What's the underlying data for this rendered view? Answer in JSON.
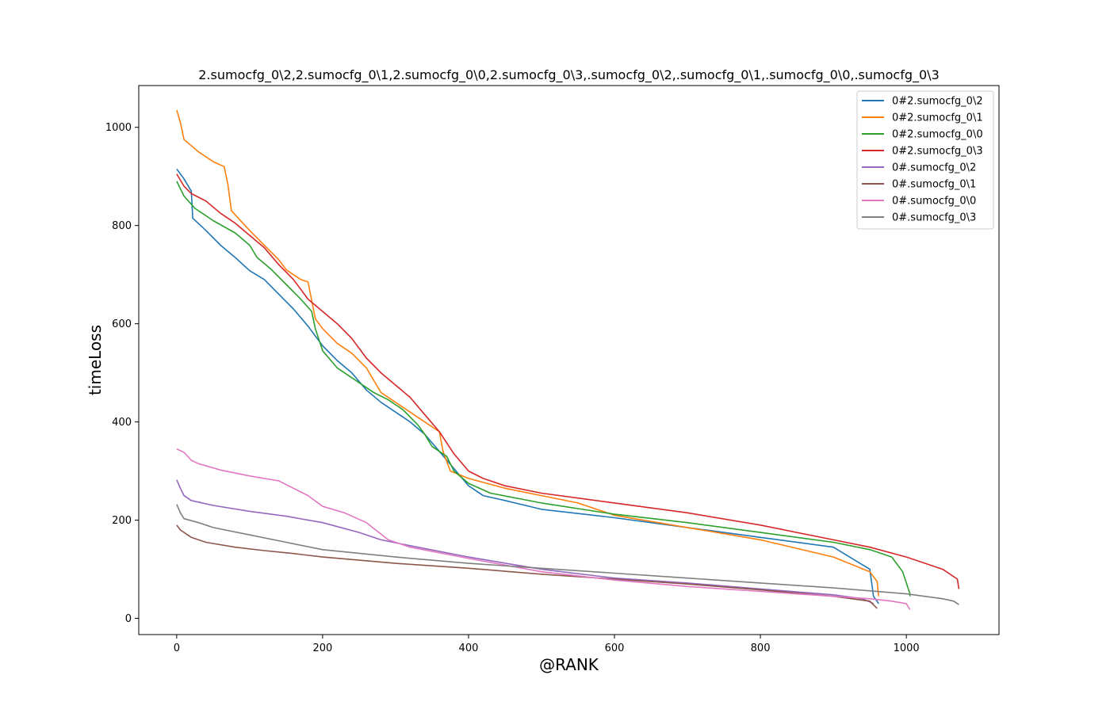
{
  "chart_data": {
    "type": "line",
    "title": "2.sumocfg_0\\2,2.sumocfg_0\\1,2.sumocfg_0\\0,2.sumocfg_0\\3,.sumocfg_0\\2,.sumocfg_0\\1,.sumocfg_0\\0,.sumocfg_0\\3",
    "xlabel": "@RANK",
    "ylabel": "timeLoss",
    "xlim": [
      -52,
      1127
    ],
    "ylim": [
      -33,
      1085
    ],
    "xticks": [
      0,
      200,
      400,
      600,
      800,
      1000
    ],
    "yticks": [
      0,
      200,
      400,
      600,
      800,
      1000
    ],
    "xtick_labels": [
      "0",
      "200",
      "400",
      "600",
      "800",
      "1000"
    ],
    "ytick_labels": [
      "0",
      "200",
      "400",
      "600",
      "800",
      "1000"
    ],
    "grid": false,
    "legend_position": "top-right",
    "series": [
      {
        "name": "0#2.sumocfg_0\\2",
        "color": "#1f77b4",
        "points": [
          [
            0,
            915
          ],
          [
            10,
            895
          ],
          [
            20,
            870
          ],
          [
            22,
            815
          ],
          [
            40,
            790
          ],
          [
            60,
            760
          ],
          [
            80,
            735
          ],
          [
            100,
            708
          ],
          [
            120,
            690
          ],
          [
            140,
            660
          ],
          [
            160,
            630
          ],
          [
            180,
            595
          ],
          [
            200,
            555
          ],
          [
            220,
            525
          ],
          [
            240,
            500
          ],
          [
            260,
            465
          ],
          [
            280,
            440
          ],
          [
            300,
            420
          ],
          [
            320,
            400
          ],
          [
            340,
            375
          ],
          [
            360,
            340
          ],
          [
            380,
            305
          ],
          [
            400,
            270
          ],
          [
            420,
            250
          ],
          [
            450,
            240
          ],
          [
            500,
            222
          ],
          [
            600,
            205
          ],
          [
            700,
            185
          ],
          [
            800,
            165
          ],
          [
            900,
            145
          ],
          [
            950,
            100
          ],
          [
            955,
            45
          ],
          [
            962,
            30
          ]
        ]
      },
      {
        "name": "0#2.sumocfg_0\\1",
        "color": "#ff7f0e",
        "points": [
          [
            0,
            1035
          ],
          [
            5,
            1010
          ],
          [
            10,
            975
          ],
          [
            30,
            950
          ],
          [
            50,
            930
          ],
          [
            65,
            920
          ],
          [
            70,
            885
          ],
          [
            75,
            830
          ],
          [
            100,
            790
          ],
          [
            120,
            760
          ],
          [
            140,
            730
          ],
          [
            150,
            710
          ],
          [
            170,
            690
          ],
          [
            180,
            685
          ],
          [
            190,
            610
          ],
          [
            200,
            590
          ],
          [
            220,
            560
          ],
          [
            240,
            540
          ],
          [
            260,
            510
          ],
          [
            280,
            460
          ],
          [
            300,
            440
          ],
          [
            320,
            420
          ],
          [
            340,
            400
          ],
          [
            360,
            380
          ],
          [
            365,
            340
          ],
          [
            375,
            300
          ],
          [
            400,
            285
          ],
          [
            450,
            265
          ],
          [
            500,
            250
          ],
          [
            550,
            235
          ],
          [
            600,
            210
          ],
          [
            700,
            185
          ],
          [
            800,
            160
          ],
          [
            900,
            125
          ],
          [
            950,
            95
          ],
          [
            960,
            75
          ],
          [
            962,
            45
          ]
        ]
      },
      {
        "name": "0#2.sumocfg_0\\0",
        "color": "#2ca02c",
        "points": [
          [
            0,
            890
          ],
          [
            5,
            875
          ],
          [
            10,
            860
          ],
          [
            25,
            835
          ],
          [
            50,
            810
          ],
          [
            80,
            785
          ],
          [
            100,
            760
          ],
          [
            110,
            735
          ],
          [
            130,
            710
          ],
          [
            150,
            680
          ],
          [
            170,
            650
          ],
          [
            185,
            625
          ],
          [
            190,
            590
          ],
          [
            200,
            545
          ],
          [
            220,
            510
          ],
          [
            240,
            490
          ],
          [
            270,
            460
          ],
          [
            290,
            445
          ],
          [
            310,
            425
          ],
          [
            330,
            395
          ],
          [
            340,
            375
          ],
          [
            350,
            350
          ],
          [
            370,
            330
          ],
          [
            380,
            300
          ],
          [
            400,
            275
          ],
          [
            430,
            255
          ],
          [
            500,
            235
          ],
          [
            600,
            212
          ],
          [
            700,
            195
          ],
          [
            800,
            175
          ],
          [
            900,
            155
          ],
          [
            950,
            140
          ],
          [
            980,
            125
          ],
          [
            995,
            95
          ],
          [
            1005,
            50
          ],
          [
            1005,
            45
          ]
        ]
      },
      {
        "name": "0#2.sumocfg_0\\3",
        "color": "#d62728",
        "points": [
          [
            0,
            905
          ],
          [
            10,
            880
          ],
          [
            20,
            865
          ],
          [
            40,
            850
          ],
          [
            60,
            825
          ],
          [
            80,
            805
          ],
          [
            100,
            780
          ],
          [
            120,
            755
          ],
          [
            140,
            720
          ],
          [
            160,
            690
          ],
          [
            180,
            650
          ],
          [
            200,
            625
          ],
          [
            220,
            600
          ],
          [
            240,
            570
          ],
          [
            260,
            530
          ],
          [
            280,
            500
          ],
          [
            300,
            475
          ],
          [
            320,
            450
          ],
          [
            340,
            415
          ],
          [
            360,
            380
          ],
          [
            380,
            335
          ],
          [
            400,
            300
          ],
          [
            420,
            285
          ],
          [
            450,
            270
          ],
          [
            500,
            255
          ],
          [
            600,
            235
          ],
          [
            700,
            215
          ],
          [
            800,
            190
          ],
          [
            900,
            160
          ],
          [
            950,
            145
          ],
          [
            1000,
            125
          ],
          [
            1050,
            100
          ],
          [
            1070,
            80
          ],
          [
            1072,
            60
          ]
        ]
      },
      {
        "name": "0#.sumocfg_0\\2",
        "color": "#9467bd",
        "points": [
          [
            0,
            282
          ],
          [
            5,
            265
          ],
          [
            10,
            250
          ],
          [
            20,
            240
          ],
          [
            50,
            230
          ],
          [
            100,
            218
          ],
          [
            150,
            208
          ],
          [
            200,
            195
          ],
          [
            250,
            175
          ],
          [
            280,
            160
          ],
          [
            320,
            148
          ],
          [
            400,
            125
          ],
          [
            500,
            100
          ],
          [
            600,
            82
          ],
          [
            700,
            72
          ],
          [
            800,
            60
          ],
          [
            900,
            48
          ],
          [
            940,
            40
          ],
          [
            955,
            30
          ]
        ]
      },
      {
        "name": "0#.sumocfg_0\\1",
        "color": "#8c564b",
        "points": [
          [
            0,
            190
          ],
          [
            5,
            180
          ],
          [
            10,
            175
          ],
          [
            20,
            165
          ],
          [
            40,
            155
          ],
          [
            80,
            145
          ],
          [
            120,
            138
          ],
          [
            160,
            132
          ],
          [
            200,
            125
          ],
          [
            300,
            112
          ],
          [
            400,
            102
          ],
          [
            500,
            90
          ],
          [
            600,
            80
          ],
          [
            700,
            70
          ],
          [
            800,
            58
          ],
          [
            900,
            45
          ],
          [
            950,
            35
          ],
          [
            960,
            20
          ]
        ]
      },
      {
        "name": "0#.sumocfg_0\\0",
        "color": "#e377c2",
        "points": [
          [
            0,
            345
          ],
          [
            10,
            338
          ],
          [
            20,
            322
          ],
          [
            30,
            315
          ],
          [
            60,
            302
          ],
          [
            100,
            290
          ],
          [
            140,
            280
          ],
          [
            160,
            265
          ],
          [
            180,
            250
          ],
          [
            200,
            228
          ],
          [
            230,
            215
          ],
          [
            260,
            195
          ],
          [
            290,
            160
          ],
          [
            320,
            145
          ],
          [
            400,
            122
          ],
          [
            500,
            95
          ],
          [
            600,
            78
          ],
          [
            700,
            65
          ],
          [
            800,
            55
          ],
          [
            900,
            45
          ],
          [
            950,
            40
          ],
          [
            980,
            35
          ],
          [
            1000,
            30
          ],
          [
            1005,
            18
          ]
        ]
      },
      {
        "name": "0#.sumocfg_0\\3",
        "color": "#7f7f7f",
        "points": [
          [
            0,
            232
          ],
          [
            5,
            215
          ],
          [
            10,
            203
          ],
          [
            30,
            195
          ],
          [
            50,
            185
          ],
          [
            100,
            170
          ],
          [
            150,
            155
          ],
          [
            200,
            140
          ],
          [
            300,
            125
          ],
          [
            400,
            112
          ],
          [
            500,
            102
          ],
          [
            600,
            92
          ],
          [
            700,
            82
          ],
          [
            800,
            72
          ],
          [
            900,
            62
          ],
          [
            1000,
            50
          ],
          [
            1050,
            40
          ],
          [
            1065,
            35
          ],
          [
            1072,
            28
          ]
        ]
      }
    ]
  }
}
